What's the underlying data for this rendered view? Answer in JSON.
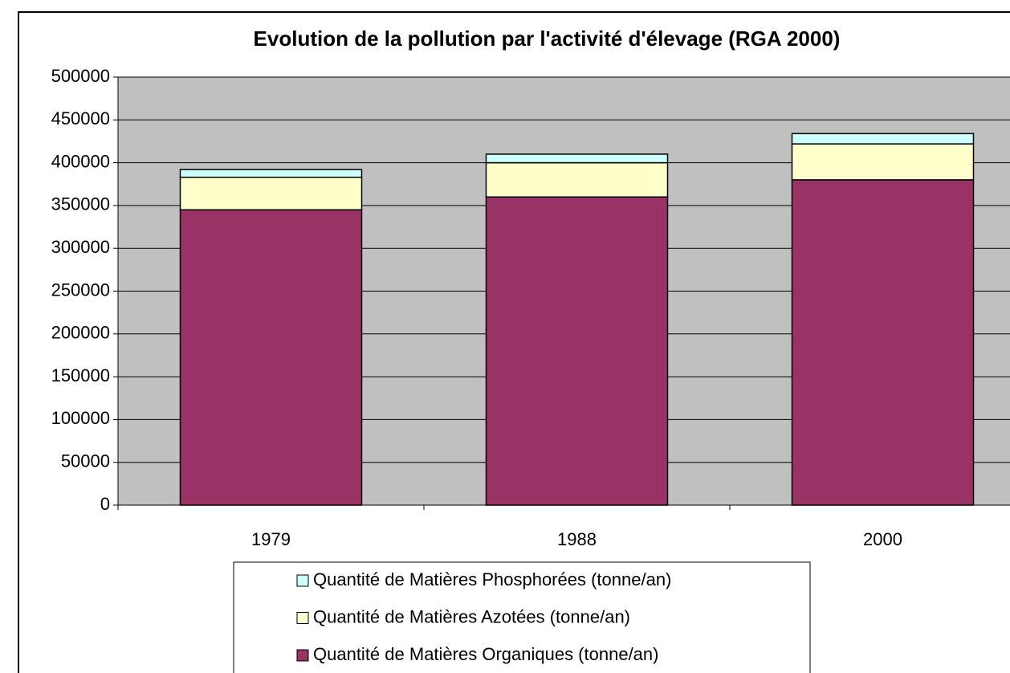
{
  "chart_data": {
    "type": "stacked_bar",
    "title": "Evolution de la pollution par l'activité d'élevage (RGA 2000)",
    "categories": [
      "1979",
      "1988",
      "2000"
    ],
    "series": [
      {
        "name": "Quantité de Matières Organiques (tonne/an)",
        "color": "#993366",
        "values": [
          345000,
          360000,
          380000
        ]
      },
      {
        "name": "Quantité de Matières Azotées (tonne/an)",
        "color": "#ffffcc",
        "values": [
          38000,
          40000,
          42000
        ]
      },
      {
        "name": "Quantité de Matières Phosphorées (tonne/an)",
        "color": "#ccffff",
        "values": [
          9000,
          10000,
          12000
        ]
      }
    ],
    "ylim": [
      0,
      500000
    ],
    "yticks": [
      0,
      50000,
      100000,
      150000,
      200000,
      250000,
      300000,
      350000,
      400000,
      450000,
      500000
    ],
    "grid": true,
    "legend": "bottom"
  }
}
